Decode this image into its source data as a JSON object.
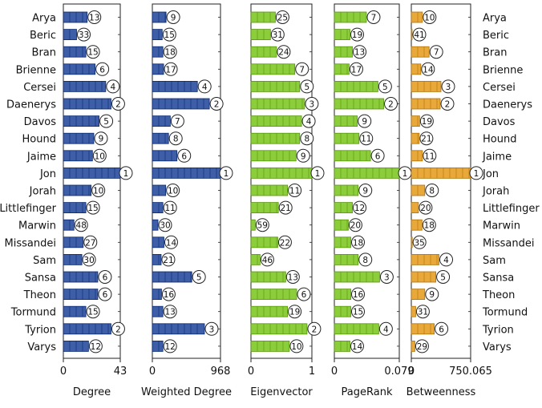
{
  "names": [
    "Arya",
    "Beric",
    "Bran",
    "Brienne",
    "Cersei",
    "Daenerys",
    "Davos",
    "Hound",
    "Jaime",
    "Jon",
    "Jorah",
    "Littlefinger",
    "Marwin",
    "Missandei",
    "Sam",
    "Sansa",
    "Theon",
    "Tormund",
    "Tyrion",
    "Varys"
  ],
  "chart_data": [
    {
      "type": "bar",
      "orientation": "horizontal",
      "xlabel": "Degree",
      "xlim": [
        0,
        43
      ],
      "ticks": [
        "0",
        "43"
      ],
      "color": "#3e5ea8",
      "values": [
        18,
        10,
        17,
        24,
        32,
        36,
        27,
        23,
        22,
        43,
        21,
        17,
        8,
        15,
        14,
        26,
        26,
        17,
        36,
        19
      ],
      "ranks": [
        13,
        33,
        15,
        6,
        4,
        2,
        5,
        9,
        10,
        1,
        10,
        15,
        48,
        27,
        30,
        6,
        6,
        15,
        2,
        12
      ]
    },
    {
      "type": "bar",
      "orientation": "horizontal",
      "xlabel": "Weighted Degree",
      "xlim": [
        0,
        968
      ],
      "ticks": [
        "0",
        "968"
      ],
      "color": "#3e5ea8",
      "values": [
        195,
        140,
        150,
        160,
        640,
        810,
        255,
        230,
        350,
        968,
        190,
        150,
        80,
        165,
        125,
        560,
        130,
        150,
        740,
        150
      ],
      "ranks": [
        9,
        15,
        18,
        17,
        4,
        2,
        7,
        8,
        6,
        1,
        10,
        11,
        30,
        14,
        21,
        5,
        16,
        13,
        3,
        12
      ]
    },
    {
      "type": "bar",
      "orientation": "horizontal",
      "xlabel": "Eigenvector",
      "xlim": [
        0,
        1
      ],
      "ticks": [
        "0",
        "1"
      ],
      "color": "#8ccd3c",
      "values": [
        0.4,
        0.32,
        0.42,
        0.72,
        0.8,
        0.88,
        0.83,
        0.8,
        0.74,
        1.0,
        0.6,
        0.45,
        0.07,
        0.44,
        0.15,
        0.57,
        0.75,
        0.6,
        0.92,
        0.63
      ],
      "ranks": [
        25,
        31,
        24,
        7,
        5,
        3,
        4,
        8,
        9,
        1,
        11,
        21,
        59,
        22,
        46,
        13,
        6,
        19,
        2,
        10
      ]
    },
    {
      "type": "bar",
      "orientation": "horizontal",
      "xlabel": "PageRank",
      "xlim": [
        0,
        0.079
      ],
      "ticks": [
        "0",
        "0.079"
      ],
      "color": "#8ccd3c",
      "values": [
        0.039,
        0.019,
        0.022,
        0.018,
        0.053,
        0.06,
        0.028,
        0.03,
        0.044,
        0.079,
        0.029,
        0.022,
        0.017,
        0.02,
        0.029,
        0.055,
        0.02,
        0.02,
        0.054,
        0.019
      ],
      "ranks": [
        7,
        19,
        13,
        17,
        5,
        2,
        9,
        11,
        6,
        1,
        9,
        12,
        20,
        18,
        8,
        3,
        16,
        15,
        4,
        14
      ]
    },
    {
      "type": "bar",
      "orientation": "horizontal",
      "xlabel": "Betweenness",
      "xlim": [
        0,
        750.065
      ],
      "ticks": [
        "0",
        "750.065"
      ],
      "color": "#e8a93a",
      "values": [
        140,
        5,
        225,
        120,
        375,
        365,
        105,
        100,
        140,
        750.065,
        170,
        90,
        135,
        12,
        350,
        310,
        170,
        55,
        290,
        45
      ],
      "ranks": [
        10,
        41,
        7,
        14,
        3,
        2,
        19,
        21,
        11,
        1,
        8,
        20,
        18,
        35,
        4,
        5,
        9,
        31,
        6,
        29
      ]
    }
  ]
}
